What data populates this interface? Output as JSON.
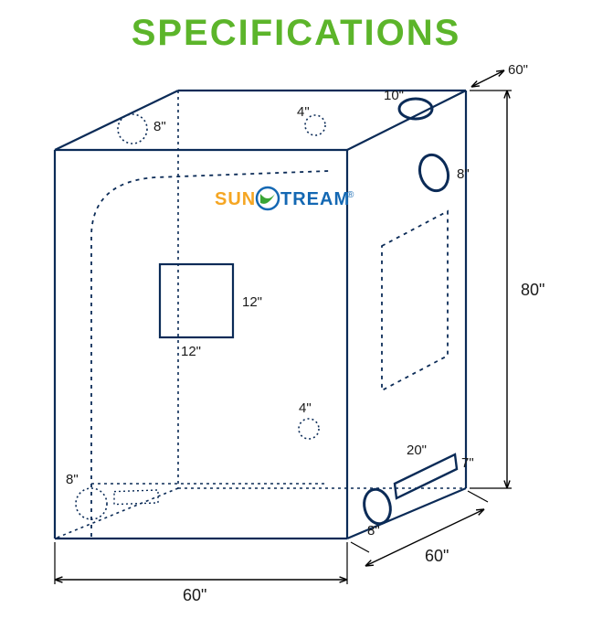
{
  "title": "SPECIFICATIONS",
  "title_color": "#5cb52a",
  "title_fontsize": 40,
  "stroke_main": "#0b2b57",
  "stroke_dashed": "#0b2b57",
  "dotted_fine": "3,4",
  "dashed_door": "4,5",
  "dotted_port": "2,3",
  "dims": {
    "width_front": "60\"",
    "width_side": "60\"",
    "height": "80\"",
    "depth_top": "60\""
  },
  "labels": {
    "top_left_port": "8\"",
    "top_mid_port": "4\"",
    "top_right_port": "10\"",
    "side_top_port": "8\"",
    "window_w": "12\"",
    "window_h": "12\"",
    "front_low_port": "4\"",
    "bot_left_port": "8\"",
    "side_bot_oval": "8\"",
    "side_rect_w": "20\"",
    "side_rect_h": "7\""
  },
  "logo": {
    "sun": "SUN",
    "stream": "TREAM",
    "sun_color": "#f5a623",
    "stream_color": "#1468b3",
    "ring_color": "#1468b3",
    "leaf_color": "#3aa535"
  }
}
